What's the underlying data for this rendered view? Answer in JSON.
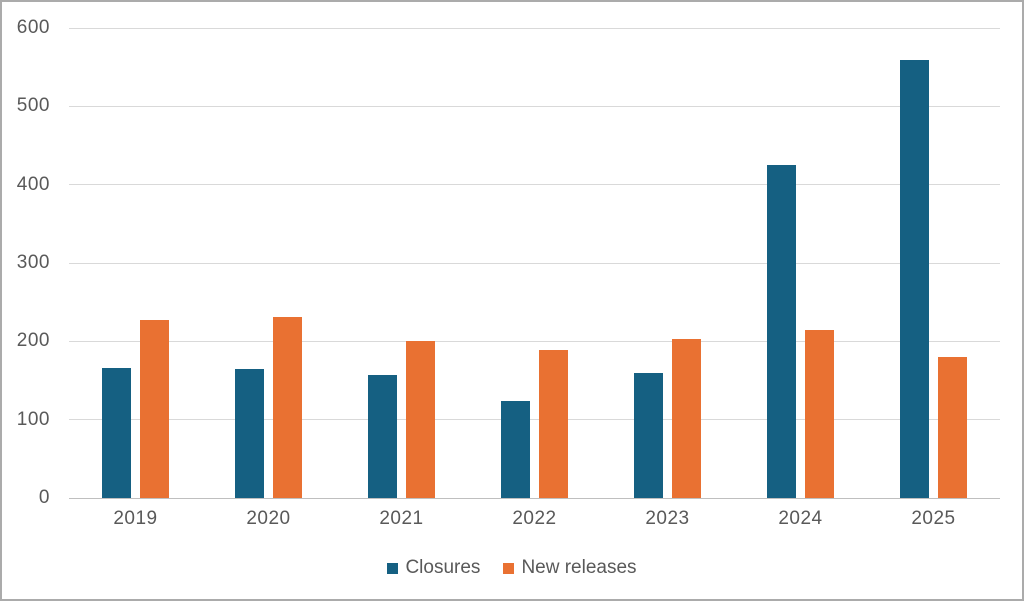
{
  "chart_data": {
    "type": "bar",
    "title": "",
    "categories": [
      "2019",
      "2020",
      "2021",
      "2022",
      "2023",
      "2024",
      "2025"
    ],
    "series": [
      {
        "name": "Closures",
        "color": "#156082",
        "values": [
          166,
          165,
          157,
          124,
          160,
          425,
          559
        ]
      },
      {
        "name": "New releases",
        "color": "#E97132",
        "values": [
          227,
          231,
          201,
          189,
          203,
          215,
          180
        ]
      }
    ],
    "ylim": [
      0,
      600
    ],
    "yticks": [
      0,
      100,
      200,
      300,
      400,
      500,
      600
    ],
    "grid": true,
    "legend_position": "bottom"
  },
  "colors": {
    "background": "#FFFFFF",
    "grid": "#D9D9D9",
    "axis_line": "#BFBFBF",
    "text": "#595959",
    "border": "#ABABAB"
  }
}
